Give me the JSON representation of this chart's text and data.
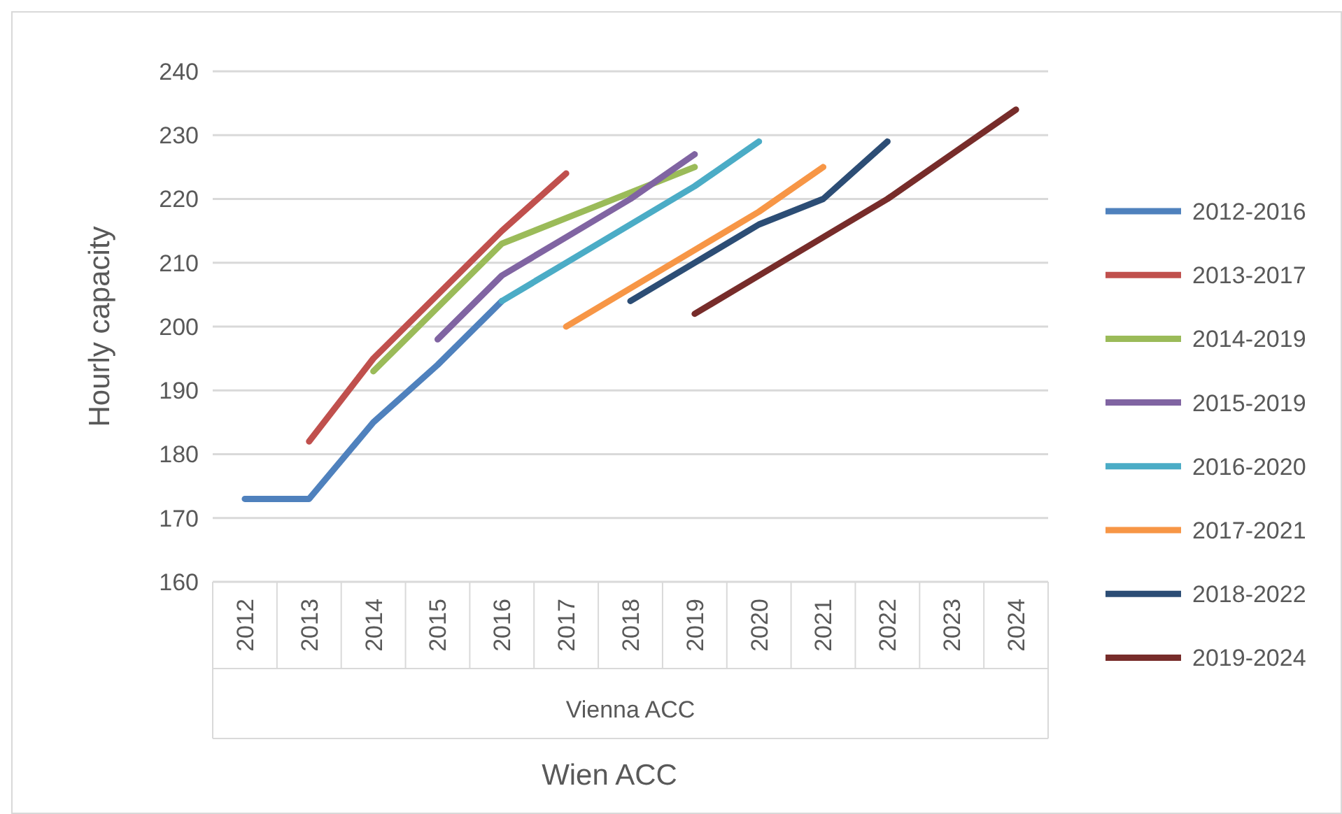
{
  "chart_data": {
    "type": "line",
    "xlabel": "Wien ACC",
    "ylabel": "Hourly capacity",
    "annotations": [
      "Vienna ACC"
    ],
    "categories": [
      "2012",
      "2013",
      "2014",
      "2015",
      "2016",
      "2017",
      "2018",
      "2019",
      "2020",
      "2021",
      "2022",
      "2023",
      "2024"
    ],
    "ylim": [
      160,
      240
    ],
    "yticks": [
      160,
      170,
      180,
      190,
      200,
      210,
      220,
      230,
      240
    ],
    "grid": "y",
    "legend": "right",
    "marker": "none",
    "line_style": "solid",
    "series": [
      {
        "name": "2012-2016",
        "color": "#4f81bd",
        "values": [
          173,
          173,
          185,
          194,
          204,
          null,
          null,
          null,
          null,
          null,
          null,
          null,
          null
        ]
      },
      {
        "name": "2013-2017",
        "color": "#c0504d",
        "values": [
          null,
          182,
          195,
          205,
          215,
          224,
          null,
          null,
          null,
          null,
          null,
          null,
          null
        ]
      },
      {
        "name": "2014-2019",
        "color": "#9bbb59",
        "values": [
          null,
          null,
          193,
          203,
          213,
          217,
          221,
          225,
          null,
          null,
          null,
          null,
          null
        ]
      },
      {
        "name": "2015-2019",
        "color": "#8064a2",
        "values": [
          null,
          null,
          null,
          198,
          208,
          214,
          220,
          227,
          null,
          null,
          null,
          null,
          null
        ]
      },
      {
        "name": "2016-2020",
        "color": "#4bacc6",
        "values": [
          null,
          null,
          null,
          null,
          204,
          210,
          216,
          222,
          229,
          null,
          null,
          null,
          null
        ]
      },
      {
        "name": "2017-2021",
        "color": "#f79646",
        "values": [
          null,
          null,
          null,
          null,
          null,
          200,
          206,
          212,
          218,
          225,
          null,
          null,
          null
        ]
      },
      {
        "name": "2018-2022",
        "color": "#2c4d75",
        "values": [
          null,
          null,
          null,
          null,
          null,
          null,
          204,
          210,
          216,
          220,
          229,
          null,
          null
        ]
      },
      {
        "name": "2019-2024",
        "color": "#772c2a",
        "values": [
          null,
          null,
          null,
          null,
          null,
          null,
          null,
          202,
          208,
          214,
          220,
          227,
          234
        ]
      }
    ]
  }
}
